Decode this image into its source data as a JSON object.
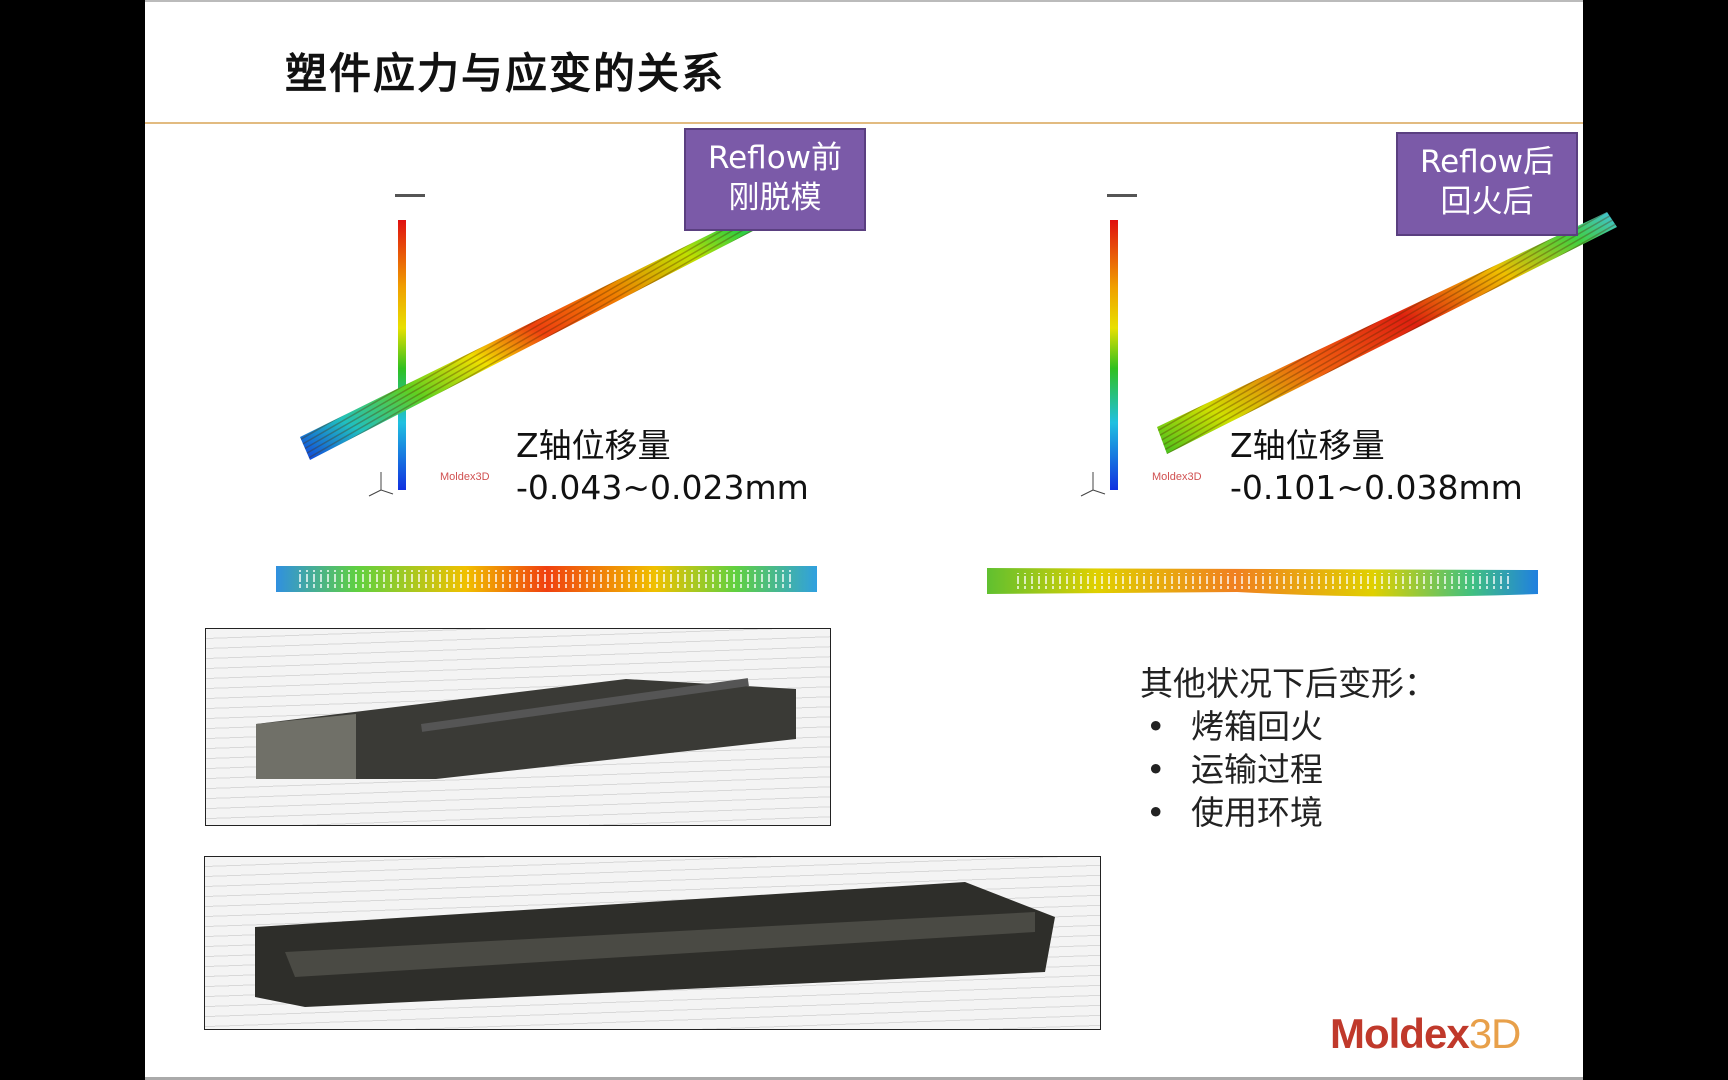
{
  "slide": {
    "title": "塑件应力与应变的关系",
    "panels": [
      {
        "tag_line1": "Reflow前",
        "tag_line2": "刚脱模",
        "z_label": "Z轴位移量",
        "z_range": "-0.043~0.023mm",
        "colorbar_brand": "Moldex3D"
      },
      {
        "tag_line1": "Reflow后",
        "tag_line2": "回火后",
        "z_label": "Z轴位移量",
        "z_range": "-0.101~0.038mm",
        "colorbar_brand": "Moldex3D"
      }
    ],
    "notes": {
      "heading": "其他状况下后变形：",
      "bullets": [
        "烤箱回火",
        "运输过程",
        "使用环境"
      ]
    },
    "logo": {
      "part1": "Moldex",
      "part2": "3D",
      "color1": "#c0392b",
      "color2": "#e8a04a"
    },
    "colors": {
      "tag_bg": "#7b5aa8",
      "divider": "#e2bb80"
    }
  }
}
